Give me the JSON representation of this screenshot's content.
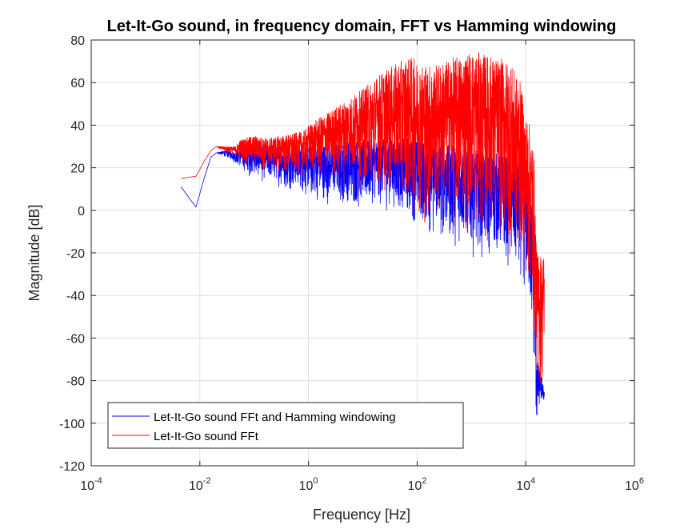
{
  "chart_data": {
    "type": "line",
    "title": "Let-It-Go sound, in frequency domain, FFT vs Hamming windowing",
    "xlabel": "Frequency [Hz]",
    "ylabel": "Magnitude [dB]",
    "x_scale": "log",
    "xlim": [
      0.0001,
      1000000
    ],
    "ylim": [
      -120,
      80
    ],
    "grid": true,
    "legend_position": "bottom-left",
    "x_ticks": [
      {
        "base": "10",
        "exp": "-4"
      },
      {
        "base": "10",
        "exp": "-2"
      },
      {
        "base": "10",
        "exp": "0"
      },
      {
        "base": "10",
        "exp": "2"
      },
      {
        "base": "10",
        "exp": "4"
      },
      {
        "base": "10",
        "exp": "6"
      }
    ],
    "y_ticks": [
      "-120",
      "-100",
      "-80",
      "-60",
      "-40",
      "-20",
      "0",
      "20",
      "40",
      "60",
      "80"
    ],
    "series": [
      {
        "name": "Let-It-Go sound FFt and Hamming windowing",
        "color": "#0000ff",
        "x": [
          0.0045,
          0.0085,
          0.012,
          0.016,
          0.02,
          0.028,
          0.035,
          0.045,
          0.055,
          0.07,
          0.1,
          0.15,
          0.2,
          0.3,
          0.5,
          0.8,
          1,
          2,
          5,
          10,
          20,
          50,
          80,
          100,
          200,
          500,
          1000,
          2000,
          5000,
          8000,
          10000,
          12000,
          14000,
          16000,
          18000,
          20000,
          22000
        ],
        "env_max": [
          11,
          1.5,
          15,
          25,
          27,
          28,
          28,
          27,
          30,
          30,
          32,
          31,
          30,
          30,
          30,
          31,
          30,
          31,
          32,
          33,
          33,
          34,
          36,
          33,
          32,
          30,
          28,
          28,
          25,
          22,
          18,
          10,
          0,
          -70,
          -75,
          -80,
          -85
        ],
        "env_min": [
          11,
          1.5,
          15,
          25,
          27,
          25,
          24,
          22,
          18,
          16,
          14,
          12,
          12,
          10,
          8,
          6,
          4,
          2,
          0,
          -2,
          0,
          -5,
          -10,
          -12,
          -15,
          -18,
          -22,
          -25,
          -30,
          -38,
          -45,
          -55,
          -80,
          -112,
          -92,
          -92,
          -90
        ]
      },
      {
        "name": "Let-It-Go sound FFt",
        "color": "#ff0000",
        "x": [
          0.0045,
          0.0085,
          0.012,
          0.016,
          0.02,
          0.028,
          0.035,
          0.045,
          0.055,
          0.07,
          0.1,
          0.15,
          0.2,
          0.3,
          0.5,
          0.8,
          1,
          2,
          5,
          10,
          20,
          50,
          80,
          100,
          200,
          500,
          1000,
          2000,
          5000,
          8000,
          10000,
          12000,
          14000,
          16000,
          18000,
          20000,
          22000
        ],
        "env_max": [
          15,
          16,
          23,
          28,
          30,
          30,
          30,
          30,
          33,
          34,
          35,
          34,
          34,
          35,
          36,
          37,
          40,
          45,
          52,
          57,
          64,
          70,
          72,
          70,
          68,
          72,
          75,
          73,
          70,
          60,
          45,
          40,
          30,
          -20,
          -20,
          -20,
          -20
        ],
        "env_min": [
          15,
          16,
          23,
          28,
          30,
          27,
          27,
          25,
          22,
          20,
          20,
          18,
          18,
          16,
          15,
          14,
          15,
          12,
          10,
          8,
          5,
          0,
          -5,
          -8,
          -10,
          -12,
          -15,
          -18,
          -25,
          -32,
          -40,
          -50,
          -75,
          -88,
          -90,
          -90,
          -90
        ]
      }
    ]
  }
}
